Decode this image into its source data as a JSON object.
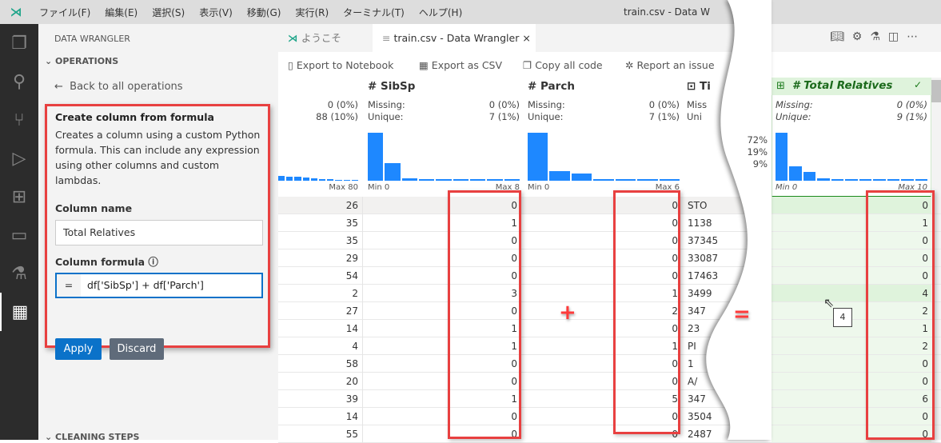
{
  "titlebar": {
    "menus": [
      "ファイル(F)",
      "編集(E)",
      "選択(S)",
      "表示(V)",
      "移動(G)",
      "実行(R)",
      "ターミナル(T)",
      "ヘルプ(H)"
    ],
    "title": "train.csv - Data W"
  },
  "activity": {
    "icons": [
      "explorer-icon",
      "search-icon",
      "source-control-icon",
      "run-debug-icon",
      "extensions-icon",
      "remote-explorer-icon",
      "testing-icon",
      "data-wrangler-icon"
    ]
  },
  "sidebar": {
    "title": "DATA WRANGLER",
    "operations": "OPERATIONS",
    "back": "Back to all operations",
    "card": {
      "heading": "Create column from formula",
      "description": "Creates a column using a custom Python formula. This can include any expression using other columns and custom lambdas.",
      "column_name_label": "Column name",
      "column_name_value": "Total Relatives",
      "formula_label": "Column formula",
      "formula_prefix": "=",
      "formula_value": "df['SibSp'] + df['Parch']",
      "apply": "Apply",
      "discard": "Discard"
    },
    "cleaning_steps": "CLEANING STEPS"
  },
  "tabs": [
    {
      "label": "ようこそ"
    },
    {
      "label": "train.csv - Data Wrangler",
      "close": "×"
    }
  ],
  "toolbar": {
    "export_notebook": "Export to Notebook",
    "export_csv": "Export as CSV",
    "copy_code": "Copy all code",
    "report_issue": "Report an issue"
  },
  "columns": {
    "age": {
      "missing": "0 (0%)",
      "unique": "88 (10%)",
      "max": "Max 80",
      "hist": [
        6,
        5,
        5,
        4,
        3,
        2,
        2,
        1,
        1,
        1
      ]
    },
    "sibsp": {
      "name": "SibSp",
      "missing_label": "Missing:",
      "unique_label": "Unique:",
      "missing": "0 (0%)",
      "unique": "7 (1%)",
      "min": "Min 0",
      "max": "Max 8",
      "hist": [
        60,
        22,
        3,
        2,
        2,
        2,
        2,
        2,
        2
      ]
    },
    "parch": {
      "name": "Parch",
      "missing_label": "Missing:",
      "unique_label": "Unique:",
      "missing": "0 (0%)",
      "unique": "7 (1%)",
      "min": "Min 0",
      "max": "Max 6",
      "hist": [
        60,
        12,
        9,
        2,
        2,
        2,
        2
      ]
    },
    "ticket": {
      "name": "Ti",
      "missing_label": "Miss",
      "unique_label": "Uni",
      "pcts": [
        "72%",
        "19%",
        "9%"
      ]
    },
    "total": {
      "name": "Total Relatives",
      "missing_label": "Missing:",
      "unique_label": "Unique:",
      "missing": "0 (0%)",
      "unique": "9 (1%)",
      "min": "Min 0",
      "max": "Max 10",
      "hist": [
        60,
        18,
        11,
        3,
        2,
        2,
        2,
        2,
        2,
        2,
        2
      ]
    }
  },
  "rows": [
    {
      "age": "26",
      "sibsp": "0",
      "parch": "0",
      "ticket": "STO",
      "total": "0"
    },
    {
      "age": "35",
      "sibsp": "1",
      "parch": "0",
      "ticket": "1138",
      "total": "1"
    },
    {
      "age": "35",
      "sibsp": "0",
      "parch": "0",
      "ticket": "37345",
      "total": "0"
    },
    {
      "age": "29",
      "sibsp": "0",
      "parch": "0",
      "ticket": "33087",
      "total": "0"
    },
    {
      "age": "54",
      "sibsp": "0",
      "parch": "0",
      "ticket": "17463",
      "total": "0"
    },
    {
      "age": "2",
      "sibsp": "3",
      "parch": "1",
      "ticket": "3499",
      "total": "4"
    },
    {
      "age": "27",
      "sibsp": "0",
      "parch": "2",
      "ticket": "347",
      "total": "2"
    },
    {
      "age": "14",
      "sibsp": "1",
      "parch": "0",
      "ticket": "23",
      "total": "1"
    },
    {
      "age": "4",
      "sibsp": "1",
      "parch": "1",
      "ticket": "PI",
      "total": "2"
    },
    {
      "age": "58",
      "sibsp": "0",
      "parch": "0",
      "ticket": "1",
      "total": "0"
    },
    {
      "age": "20",
      "sibsp": "0",
      "parch": "0",
      "ticket": "A/",
      "total": "0"
    },
    {
      "age": "39",
      "sibsp": "1",
      "parch": "5",
      "ticket": "347",
      "total": "6"
    },
    {
      "age": "14",
      "sibsp": "0",
      "parch": "0",
      "ticket": "3504",
      "total": "0"
    },
    {
      "age": "55",
      "sibsp": "0",
      "parch": "0",
      "ticket": "2487",
      "total": "0"
    }
  ],
  "annotations": {
    "plus": "+",
    "equals": "=",
    "tooltip": "4"
  },
  "colors": {
    "accent": "#0b72c9",
    "highlight": "#e84040",
    "new_column_bg": "#eef8ec",
    "bar": "#1e88ff"
  }
}
